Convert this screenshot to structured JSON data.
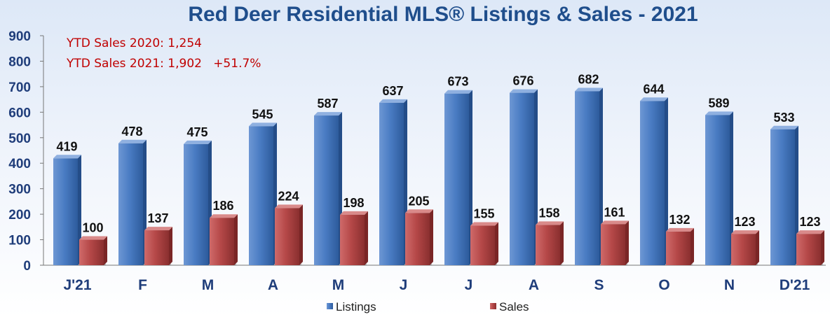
{
  "chart_data": {
    "type": "bar",
    "title": "Red Deer Residential MLS® Listings & Sales - 2021",
    "categories": [
      "J'21",
      "F",
      "M",
      "A",
      "M",
      "J",
      "J",
      "A",
      "S",
      "O",
      "N",
      "D'21"
    ],
    "series": [
      {
        "name": "Listings",
        "values": [
          419,
          478,
          475,
          545,
          587,
          637,
          673,
          676,
          682,
          644,
          589,
          533
        ],
        "color": "#4a7cc3"
      },
      {
        "name": "Sales",
        "values": [
          100,
          137,
          186,
          224,
          198,
          205,
          155,
          158,
          161,
          132,
          123,
          123
        ],
        "color": "#b54848"
      }
    ],
    "ylim": [
      0,
      900
    ],
    "yticks": [
      0,
      100,
      200,
      300,
      400,
      500,
      600,
      700,
      800,
      900
    ],
    "grid": false,
    "legend_position": "bottom",
    "annotations": [
      "YTD Sales 2020: 1,254",
      "YTD Sales 2021: 1,902   +51.7%"
    ]
  },
  "colors": {
    "title": "#1f4e8c",
    "axis_text": "#1f3d7a",
    "annotation": "#c00000"
  }
}
